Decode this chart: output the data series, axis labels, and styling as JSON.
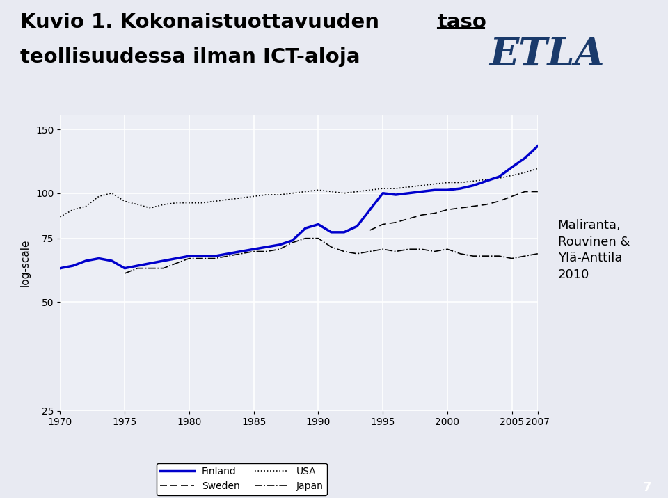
{
  "title_part1": "Kuvio 1. Kokonaistuottavuuden ",
  "title_underlined": "taso",
  "title_line2": "teollisuudessa ilman ICT-aloja",
  "ylabel": "log-scale",
  "years": [
    1970,
    1971,
    1972,
    1973,
    1974,
    1975,
    1976,
    1977,
    1978,
    1979,
    1980,
    1981,
    1982,
    1983,
    1984,
    1985,
    1986,
    1987,
    1988,
    1989,
    1990,
    1991,
    1992,
    1993,
    1994,
    1995,
    1996,
    1997,
    1998,
    1999,
    2000,
    2001,
    2002,
    2003,
    2004,
    2005,
    2006,
    2007
  ],
  "finland": [
    62,
    63,
    65,
    66,
    65,
    62,
    63,
    64,
    65,
    66,
    67,
    67,
    67,
    68,
    69,
    70,
    71,
    72,
    74,
    80,
    82,
    78,
    78,
    81,
    90,
    100,
    99,
    100,
    101,
    102,
    102,
    103,
    105,
    108,
    111,
    118,
    125,
    135
  ],
  "usa": [
    86,
    90,
    92,
    98,
    100,
    95,
    93,
    91,
    93,
    94,
    94,
    94,
    95,
    96,
    97,
    98,
    99,
    99,
    100,
    101,
    102,
    101,
    100,
    101,
    102,
    103,
    103,
    104,
    105,
    106,
    107,
    107,
    108,
    109,
    110,
    112,
    114,
    117
  ],
  "sweden": [
    null,
    null,
    null,
    null,
    null,
    null,
    null,
    null,
    null,
    null,
    null,
    null,
    null,
    null,
    null,
    null,
    null,
    null,
    null,
    null,
    null,
    null,
    null,
    null,
    79,
    82,
    83,
    85,
    87,
    88,
    90,
    91,
    92,
    93,
    95,
    98,
    101,
    101
  ],
  "japan": [
    null,
    null,
    null,
    null,
    null,
    60,
    62,
    62,
    62,
    64,
    66,
    66,
    66,
    67,
    68,
    69,
    69,
    70,
    73,
    75,
    75,
    71,
    69,
    68,
    69,
    70,
    69,
    70,
    70,
    69,
    70,
    68,
    67,
    67,
    67,
    66,
    67,
    68
  ],
  "ylim": [
    25,
    165
  ],
  "yticks": [
    25,
    50,
    75,
    100,
    150
  ],
  "xlim": [
    1970,
    2007
  ],
  "xticks": [
    1970,
    1975,
    1980,
    1985,
    1990,
    1995,
    2000,
    2005,
    2007
  ],
  "finland_color": "#0000cc",
  "black": "#000000",
  "bg_color": "#e8eaf2",
  "plot_bg_color": "#eceef5",
  "grid_color": "#ffffff",
  "title_bg_color": "#dde3ee",
  "blue_bar_color": "#1a3a6b",
  "citation": "Maliranta,\nRouvinen &\nYlä-Anttila\n2010",
  "page_number": "7"
}
